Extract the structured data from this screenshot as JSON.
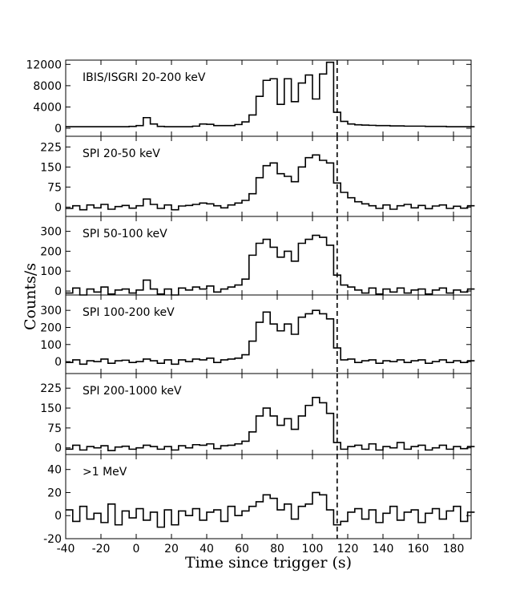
{
  "ylabel": "Counts/s",
  "chart_data": [
    {
      "type": "line",
      "step": true,
      "label": "IBIS/ISGRI 20-200 keV",
      "color": "#000000",
      "vline_x": 114,
      "xlim": [
        -40,
        190
      ],
      "xticks": [
        -40,
        -20,
        0,
        20,
        40,
        60,
        80,
        100,
        120,
        140,
        160,
        180
      ],
      "ylim": [
        -1500,
        12800
      ],
      "yticks": [
        0,
        4000,
        8000,
        12000
      ],
      "x": [
        -40,
        -36,
        -32,
        -28,
        -24,
        -20,
        -16,
        -12,
        -8,
        -4,
        0,
        4,
        8,
        12,
        16,
        20,
        24,
        28,
        32,
        36,
        40,
        44,
        48,
        52,
        56,
        60,
        64,
        68,
        72,
        76,
        80,
        84,
        88,
        92,
        96,
        100,
        104,
        108,
        112,
        116,
        120,
        124,
        128,
        132,
        136,
        140,
        144,
        148,
        152,
        156,
        160,
        164,
        168,
        172,
        176,
        180,
        184,
        188
      ],
      "values": [
        300,
        300,
        300,
        300,
        300,
        300,
        300,
        300,
        300,
        350,
        500,
        2000,
        800,
        350,
        300,
        300,
        300,
        300,
        400,
        800,
        750,
        500,
        500,
        500,
        700,
        1200,
        2500,
        6000,
        9000,
        9300,
        4500,
        9300,
        5000,
        8500,
        10000,
        5500,
        10200,
        12400,
        3000,
        1300,
        800,
        650,
        600,
        550,
        500,
        500,
        450,
        450,
        400,
        400,
        400,
        350,
        350,
        350,
        300,
        300,
        300,
        300
      ]
    },
    {
      "type": "line",
      "step": true,
      "label": "SPI 20-50 keV",
      "color": "#000000",
      "vline_x": 114,
      "xlim": [
        -40,
        190
      ],
      "xticks": [
        -40,
        -20,
        0,
        20,
        40,
        60,
        80,
        100,
        120,
        140,
        160,
        180
      ],
      "ylim": [
        -35,
        265
      ],
      "yticks": [
        0,
        75,
        150,
        225
      ],
      "x": [
        -40,
        -36,
        -32,
        -28,
        -24,
        -20,
        -16,
        -12,
        -8,
        -4,
        0,
        4,
        8,
        12,
        16,
        20,
        24,
        28,
        32,
        36,
        40,
        44,
        48,
        52,
        56,
        60,
        64,
        68,
        72,
        76,
        80,
        84,
        88,
        92,
        96,
        100,
        104,
        108,
        112,
        116,
        120,
        124,
        128,
        132,
        136,
        140,
        144,
        148,
        152,
        156,
        160,
        164,
        168,
        172,
        176,
        180,
        184,
        188
      ],
      "values": [
        -5,
        5,
        -10,
        8,
        -3,
        10,
        -8,
        2,
        6,
        -4,
        5,
        30,
        10,
        -5,
        8,
        -10,
        4,
        6,
        10,
        15,
        12,
        5,
        -3,
        8,
        15,
        25,
        50,
        110,
        155,
        165,
        125,
        115,
        95,
        150,
        185,
        195,
        175,
        165,
        90,
        55,
        35,
        20,
        12,
        5,
        -5,
        8,
        -8,
        5,
        10,
        -3,
        6,
        -6,
        4,
        8,
        -5,
        3,
        -4,
        5
      ]
    },
    {
      "type": "line",
      "step": true,
      "label": "SPI 50-100 keV",
      "color": "#000000",
      "vline_x": 114,
      "xlim": [
        -40,
        190
      ],
      "xticks": [
        -40,
        -20,
        0,
        20,
        40,
        60,
        80,
        100,
        120,
        140,
        160,
        180
      ],
      "ylim": [
        -20,
        375
      ],
      "yticks": [
        0,
        100,
        200,
        300
      ],
      "x": [
        -40,
        -36,
        -32,
        -28,
        -24,
        -20,
        -16,
        -12,
        -8,
        -4,
        0,
        4,
        8,
        12,
        16,
        20,
        24,
        28,
        32,
        36,
        40,
        44,
        48,
        52,
        56,
        60,
        64,
        68,
        72,
        76,
        80,
        84,
        88,
        92,
        96,
        100,
        104,
        108,
        112,
        116,
        120,
        124,
        128,
        132,
        136,
        140,
        144,
        148,
        152,
        156,
        160,
        164,
        168,
        172,
        176,
        180,
        184,
        188
      ],
      "values": [
        -10,
        15,
        -20,
        10,
        -5,
        20,
        -15,
        5,
        10,
        -10,
        5,
        55,
        10,
        -15,
        10,
        -20,
        15,
        5,
        20,
        10,
        25,
        -5,
        10,
        20,
        30,
        60,
        180,
        240,
        260,
        220,
        170,
        200,
        150,
        240,
        260,
        280,
        270,
        230,
        80,
        30,
        20,
        5,
        -10,
        15,
        -15,
        10,
        -5,
        15,
        -10,
        5,
        10,
        -15,
        5,
        15,
        -10,
        5,
        -5,
        10
      ]
    },
    {
      "type": "line",
      "step": true,
      "label": "SPI 100-200 keV",
      "color": "#000000",
      "vline_x": 114,
      "xlim": [
        -40,
        190
      ],
      "xticks": [
        -40,
        -20,
        0,
        20,
        40,
        60,
        80,
        100,
        120,
        140,
        160,
        180
      ],
      "ylim": [
        -70,
        390
      ],
      "yticks": [
        0,
        100,
        200,
        300
      ],
      "x": [
        -40,
        -36,
        -32,
        -28,
        -24,
        -20,
        -16,
        -12,
        -8,
        -4,
        0,
        4,
        8,
        12,
        16,
        20,
        24,
        28,
        32,
        36,
        40,
        44,
        48,
        52,
        56,
        60,
        64,
        68,
        72,
        76,
        80,
        84,
        88,
        92,
        96,
        100,
        104,
        108,
        112,
        116,
        120,
        124,
        128,
        132,
        136,
        140,
        144,
        148,
        152,
        156,
        160,
        164,
        168,
        172,
        176,
        180,
        184,
        188
      ],
      "values": [
        -5,
        10,
        -15,
        5,
        0,
        15,
        -10,
        5,
        8,
        -5,
        0,
        15,
        5,
        -10,
        10,
        -15,
        10,
        0,
        15,
        10,
        20,
        -5,
        10,
        15,
        20,
        40,
        120,
        230,
        290,
        220,
        180,
        220,
        160,
        260,
        280,
        300,
        280,
        250,
        80,
        10,
        15,
        -5,
        5,
        10,
        -10,
        5,
        0,
        10,
        -5,
        5,
        10,
        -10,
        0,
        10,
        -5,
        5,
        -5,
        5
      ]
    },
    {
      "type": "line",
      "step": true,
      "label": "SPI 200-1000 keV",
      "color": "#000000",
      "vline_x": 114,
      "xlim": [
        -40,
        190
      ],
      "xticks": [
        -40,
        -20,
        0,
        20,
        40,
        60,
        80,
        100,
        120,
        140,
        160,
        180
      ],
      "ylim": [
        -25,
        280
      ],
      "yticks": [
        0,
        75,
        150,
        225
      ],
      "x": [
        -40,
        -36,
        -32,
        -28,
        -24,
        -20,
        -16,
        -12,
        -8,
        -4,
        0,
        4,
        8,
        12,
        16,
        20,
        24,
        28,
        32,
        36,
        40,
        44,
        48,
        52,
        56,
        60,
        64,
        68,
        72,
        76,
        80,
        84,
        88,
        92,
        96,
        100,
        104,
        108,
        112,
        116,
        120,
        124,
        128,
        132,
        136,
        140,
        144,
        148,
        152,
        156,
        160,
        164,
        168,
        172,
        176,
        180,
        184,
        188
      ],
      "values": [
        -5,
        10,
        -8,
        5,
        0,
        8,
        -10,
        3,
        6,
        -5,
        0,
        10,
        5,
        -5,
        5,
        -8,
        8,
        0,
        12,
        10,
        15,
        -3,
        8,
        10,
        15,
        25,
        60,
        120,
        150,
        120,
        85,
        110,
        70,
        120,
        160,
        190,
        170,
        130,
        20,
        -5,
        5,
        10,
        -5,
        15,
        -8,
        5,
        0,
        20,
        -5,
        5,
        10,
        -8,
        0,
        10,
        -5,
        5,
        -3,
        5
      ]
    },
    {
      "type": "line",
      "step": true,
      "label": ">1 MeV",
      "color": "#000000",
      "vline_x": 114,
      "xlim": [
        -40,
        190
      ],
      "xticks": [
        -40,
        -20,
        0,
        20,
        40,
        60,
        80,
        100,
        120,
        140,
        160,
        180
      ],
      "ylim": [
        -20,
        53
      ],
      "yticks": [
        -20,
        0,
        20,
        40
      ],
      "xlabel": "Time since trigger (s)",
      "x": [
        -40,
        -36,
        -32,
        -28,
        -24,
        -20,
        -16,
        -12,
        -8,
        -4,
        0,
        4,
        8,
        12,
        16,
        20,
        24,
        28,
        32,
        36,
        40,
        44,
        48,
        52,
        56,
        60,
        64,
        68,
        72,
        76,
        80,
        84,
        88,
        92,
        96,
        100,
        104,
        108,
        112,
        116,
        120,
        124,
        128,
        132,
        136,
        140,
        144,
        148,
        152,
        156,
        160,
        164,
        168,
        172,
        176,
        180,
        184,
        188
      ],
      "values": [
        5,
        -5,
        8,
        -3,
        2,
        -6,
        10,
        -8,
        4,
        -2,
        6,
        -4,
        3,
        -10,
        5,
        -8,
        4,
        0,
        6,
        -4,
        3,
        5,
        -5,
        8,
        0,
        4,
        8,
        12,
        18,
        15,
        5,
        10,
        -3,
        8,
        10,
        20,
        18,
        5,
        -8,
        -5,
        3,
        6,
        -3,
        5,
        -6,
        2,
        8,
        -4,
        3,
        5,
        -6,
        2,
        6,
        -3,
        4,
        8,
        -5,
        3
      ]
    }
  ]
}
